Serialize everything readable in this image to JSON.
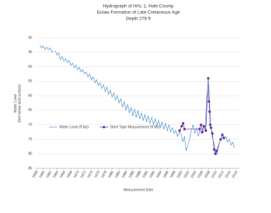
{
  "chart_data": {
    "type": "line",
    "title": [
      "Hydrograph of HAL-1, Hale County",
      "Eutaw Formation of Late Cretaceous Age",
      "Depth 278 ft"
    ],
    "ylabel": [
      "Water Level",
      "(feet below land surface)"
    ],
    "xlabel": "Measurement Date",
    "xlim": [
      1958,
      2017
    ],
    "ylim": [
      40,
      85
    ],
    "y_inverted": true,
    "xticks": [
      1958,
      1960,
      1962,
      1964,
      1966,
      1968,
      1970,
      1972,
      1974,
      1976,
      1978,
      1980,
      1982,
      1984,
      1986,
      1988,
      1990,
      1992,
      1994,
      1996,
      1998,
      2000,
      2002,
      2004,
      2006,
      2008,
      2010,
      2012,
      2014,
      2016
    ],
    "yticks": [
      40,
      45,
      50,
      55,
      60,
      65,
      70,
      75,
      80,
      85
    ],
    "grid": true,
    "legend": "inside-left",
    "series": [
      {
        "name": "Water Level (ft bls)",
        "color": "#5b9bd5",
        "style": "line",
        "x": [
          1959,
          1959.5,
          1960,
          1960.5,
          1961,
          1961.5,
          1962,
          1962.5,
          1963,
          1963.2,
          1963.5,
          1964,
          1964.5,
          1965,
          1965.5,
          1966,
          1966.5,
          1967,
          1967.5,
          1968,
          1968.5,
          1969,
          1969.5,
          1970,
          1970.5,
          1971,
          1971.5,
          1972,
          1972.5,
          1973,
          1973.5,
          1974,
          1974.5,
          1975,
          1975.5,
          1976,
          1976.5,
          1977,
          1977.5,
          1978,
          1978.5,
          1979,
          1979.5,
          1980,
          1980.5,
          1981,
          1981.5,
          1982,
          1982.5,
          1983,
          1983.5,
          1984,
          1984.5,
          1985,
          1985.5,
          1986,
          1986.5,
          1987,
          1987.5,
          1988,
          1988.5,
          1989,
          1989.5,
          1990,
          1990.5,
          1991,
          1991.5,
          1992,
          1992.5,
          1993,
          1993.5,
          1994,
          1994.5,
          1995,
          1995.5,
          1996,
          1996.5,
          1997,
          1997.5,
          1998,
          1998.5,
          1999,
          1999.5,
          2000,
          2000.5,
          2001,
          2001.5,
          2002,
          2002.5,
          2003,
          2003.5,
          2004,
          2004.5,
          2005,
          2005.5,
          2006,
          2006.5,
          2007,
          2007.5,
          2008,
          2008.3,
          2008.6,
          2009,
          2009.5,
          2010,
          2010.5,
          2011,
          2011.5,
          2012,
          2012.5,
          2013,
          2013.5,
          2014,
          2014.5,
          2015,
          2015.5
        ],
        "values": [
          42.5,
          43.5,
          42.8,
          44,
          43.2,
          44.2,
          43.5,
          45,
          44.5,
          null,
          44.5,
          46,
          45.2,
          47.5,
          46.5,
          48,
          47.2,
          48.5,
          47.8,
          49.5,
          48.7,
          50.3,
          49.5,
          51,
          50.2,
          51.8,
          51,
          52.5,
          51.8,
          53.5,
          52.5,
          54.5,
          53.5,
          55.5,
          54.5,
          56.5,
          55.5,
          57.5,
          56.2,
          58.5,
          57,
          59.5,
          58,
          60.5,
          59,
          61.5,
          60,
          62.5,
          61,
          64,
          62,
          65,
          63,
          66,
          64,
          67,
          64.5,
          67.5,
          65,
          68,
          66,
          68.5,
          66.5,
          69,
          67,
          69.5,
          67.5,
          70,
          68,
          70.5,
          68.5,
          71,
          69,
          71.5,
          69.5,
          72,
          70,
          72.5,
          71,
          73,
          72,
          74,
          72.5,
          73,
          76,
          74,
          79,
          77,
          75,
          72,
          70,
          73,
          71,
          74,
          72,
          73,
          70,
          72,
          60,
          55,
          62,
          70,
          74,
          76,
          79,
          80,
          77,
          75,
          73,
          75,
          74,
          76,
          75,
          77,
          76,
          78
        ]
      },
      {
        "name": "Steel Tape Measurement (ft bls)",
        "color": "#7030a0",
        "style": "markers",
        "x": [
          1999.6,
          2000.2,
          2000.6,
          2001,
          2005.4,
          2005.8,
          2006.2,
          2006.6,
          2007.2,
          2007.9,
          2008.1,
          2008.3,
          2008.5,
          2008.7,
          2009.1,
          2009.6,
          2010,
          2010.3,
          2011.5,
          2012,
          2012.4
        ],
        "values": [
          72,
          70.5,
          69.5,
          71.5,
          71.5,
          70,
          72.5,
          70.5,
          72,
          54,
          62,
          65.5,
          70,
          71,
          73,
          78.5,
          80,
          79,
          75,
          73.5,
          74.5
        ]
      }
    ]
  }
}
